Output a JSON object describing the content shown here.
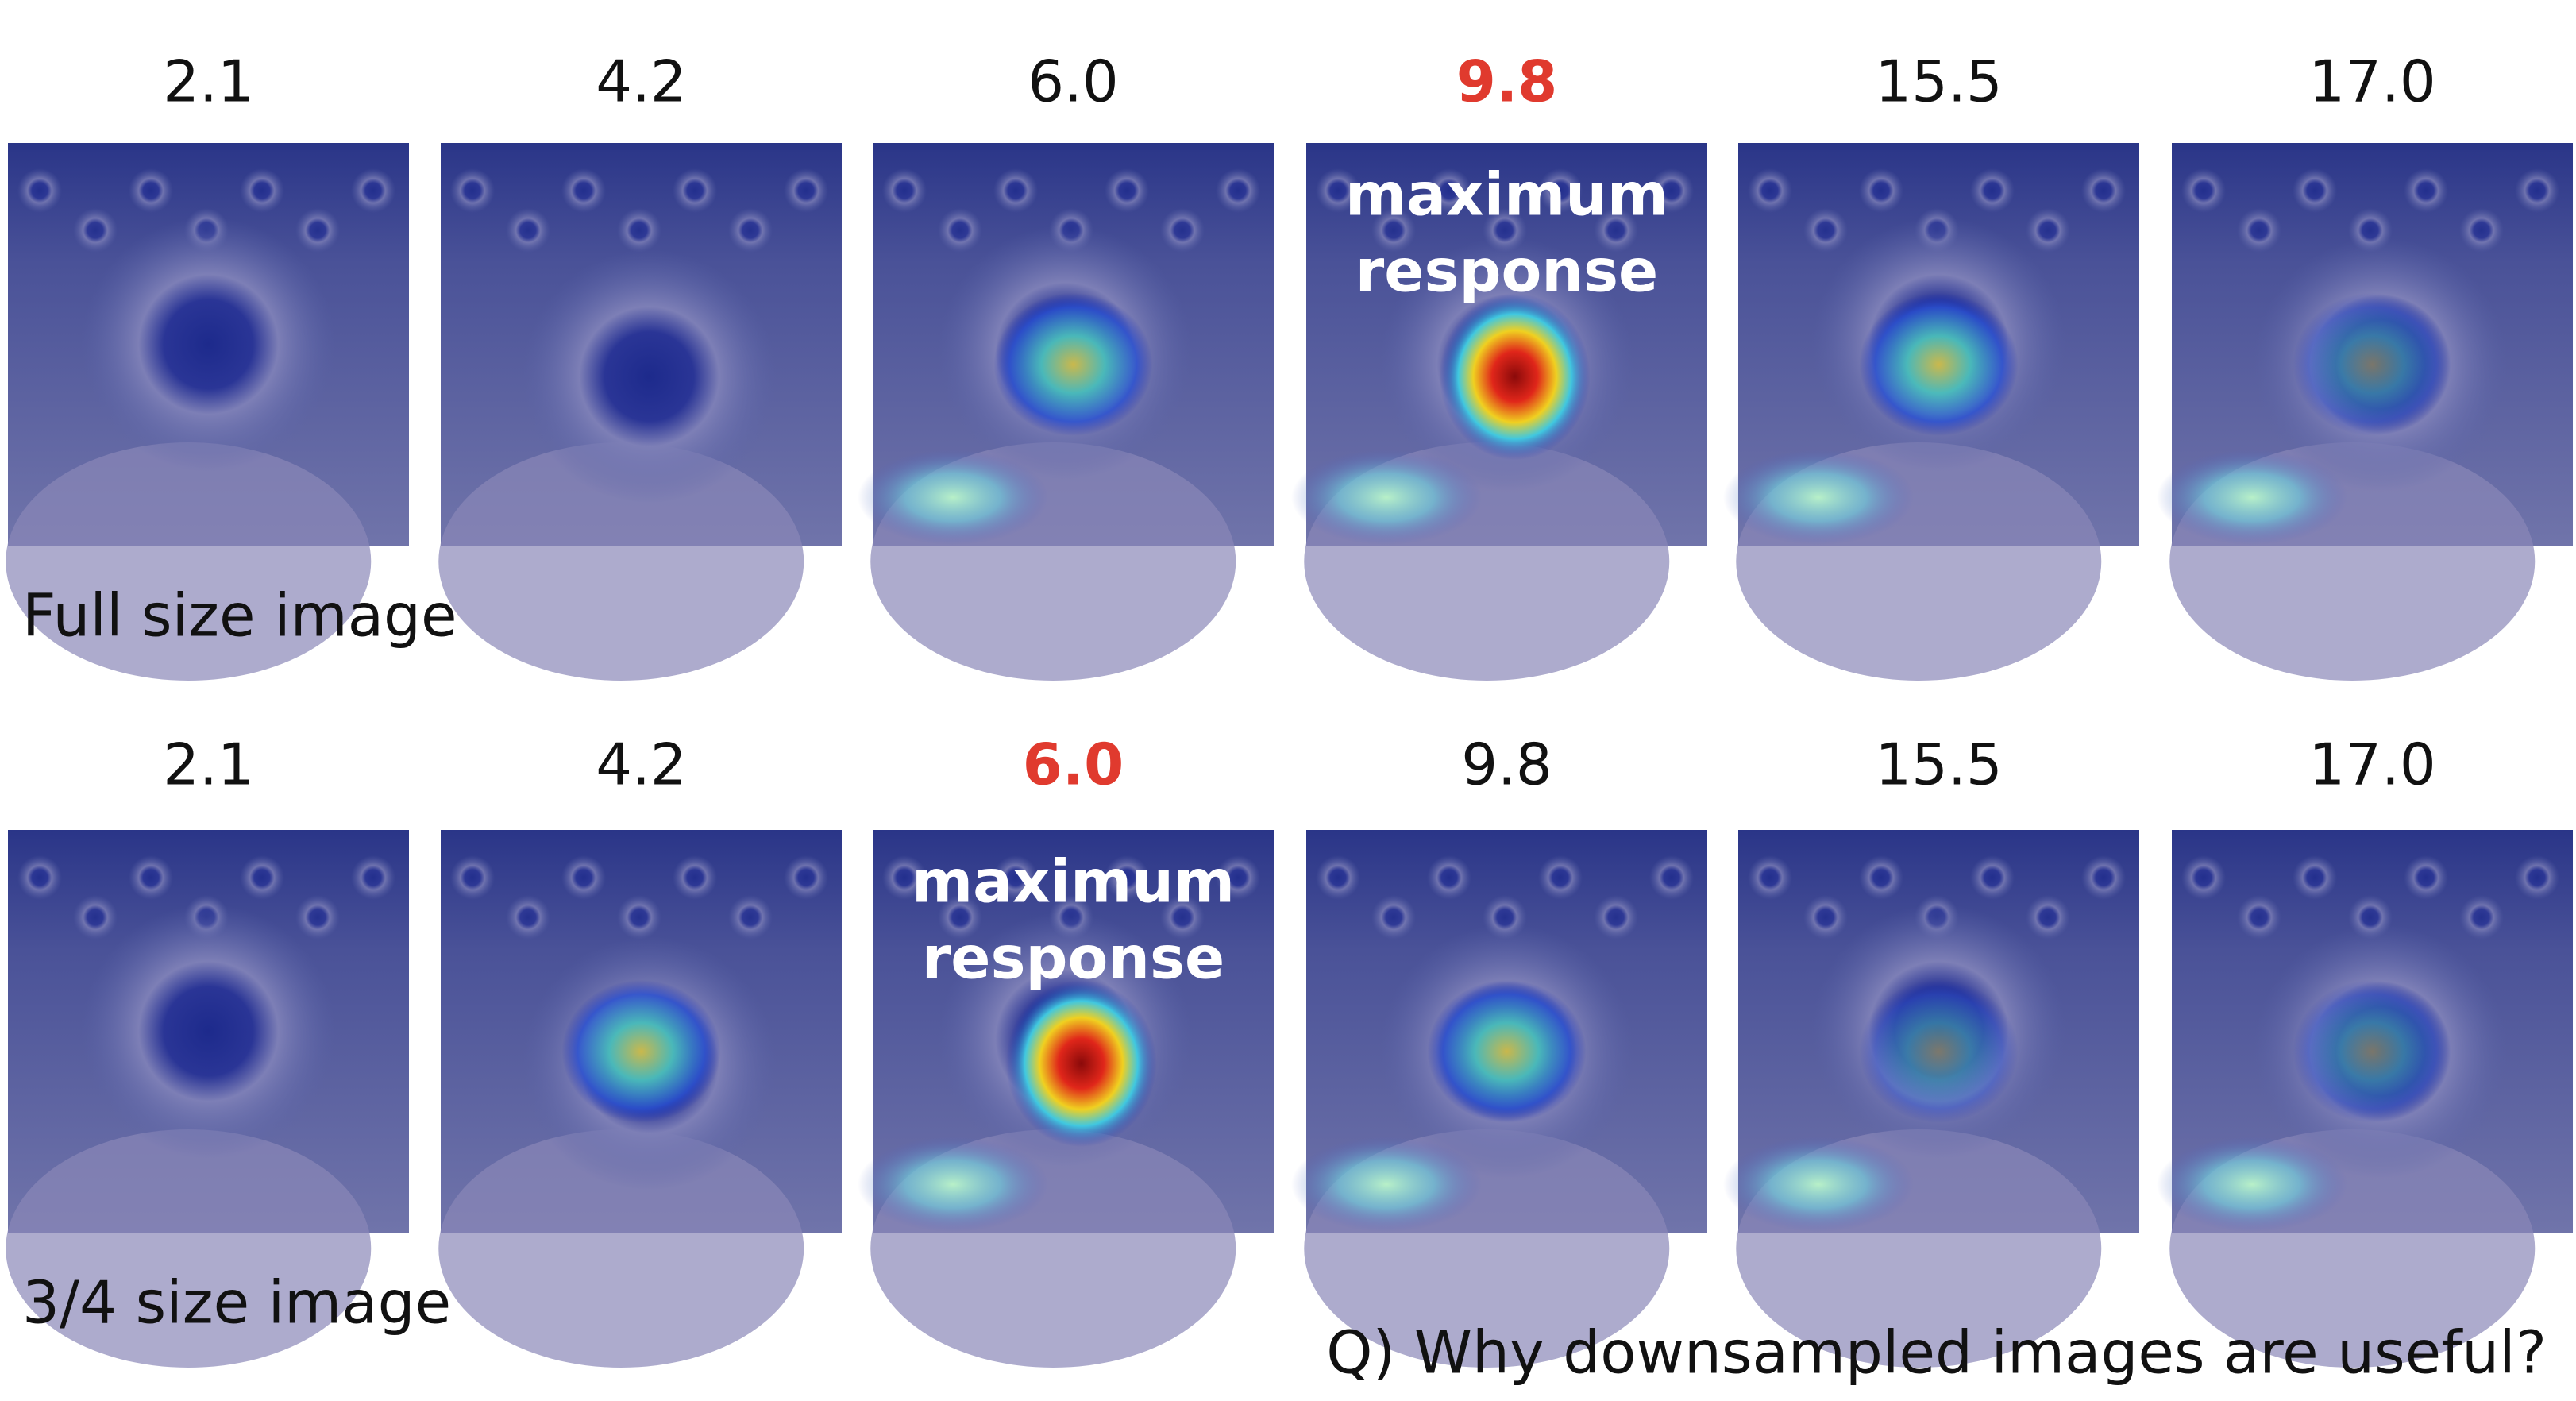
{
  "rows": [
    {
      "scales": [
        "2.1",
        "4.2",
        "6.0",
        "9.8",
        "15.5",
        "17.0"
      ],
      "highlight": 3,
      "annotation": [
        "maximum",
        "response"
      ],
      "label": "Full size image"
    },
    {
      "scales": [
        "2.1",
        "4.2",
        "6.0",
        "9.8",
        "15.5",
        "17.0"
      ],
      "highlight": 2,
      "annotation": [
        "maximum",
        "response"
      ],
      "label": "3/4 size image"
    }
  ],
  "question": "Q) Why downsampled images are useful?"
}
